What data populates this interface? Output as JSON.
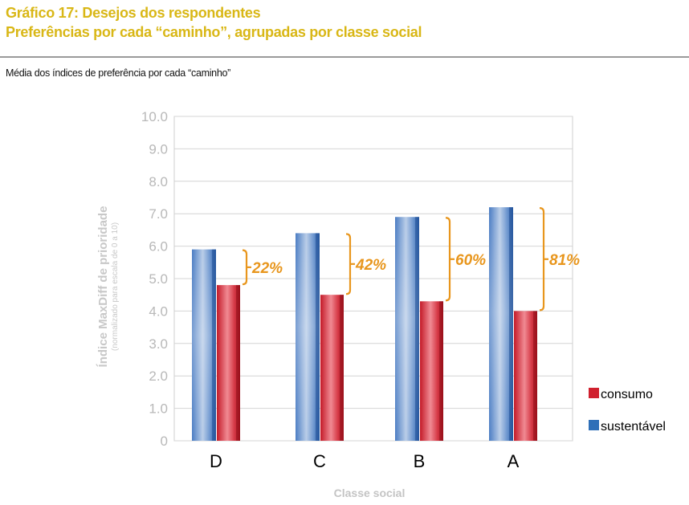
{
  "header": {
    "title_line1": "Gráfico 17: Desejos dos respondentes",
    "title_line2": "Preferências por cada “caminho”, agrupadas  por classe social",
    "subtitle": "Média dos índices de preferência por cada “caminho”"
  },
  "chart_data": {
    "type": "bar",
    "categories": [
      "D",
      "C",
      "B",
      "A"
    ],
    "series": [
      {
        "name": "sustentável",
        "color": "#2f6fb8",
        "values": [
          5.9,
          6.4,
          6.9,
          7.2
        ]
      },
      {
        "name": "consumo",
        "color": "#d0202e",
        "values": [
          4.8,
          4.5,
          4.3,
          4.0
        ]
      }
    ],
    "differences": [
      "22%",
      "42%",
      "60%",
      "81%"
    ],
    "ylabel": "Índice MaxDiff de prioridade",
    "ylabel_note": "(normalizado para escala de 0 a 10)",
    "xlabel": "Classe social",
    "ylim": [
      0,
      10
    ],
    "yticks": [
      "0",
      "1.0",
      "2.0",
      "3.0",
      "4.0",
      "5.0",
      "6.0",
      "7.0",
      "8.0",
      "9.0",
      "10.0"
    ],
    "grid": true,
    "legend_position": "right",
    "legend": [
      "consumo",
      "sustentável"
    ],
    "annotation_color": "#e8961d"
  }
}
